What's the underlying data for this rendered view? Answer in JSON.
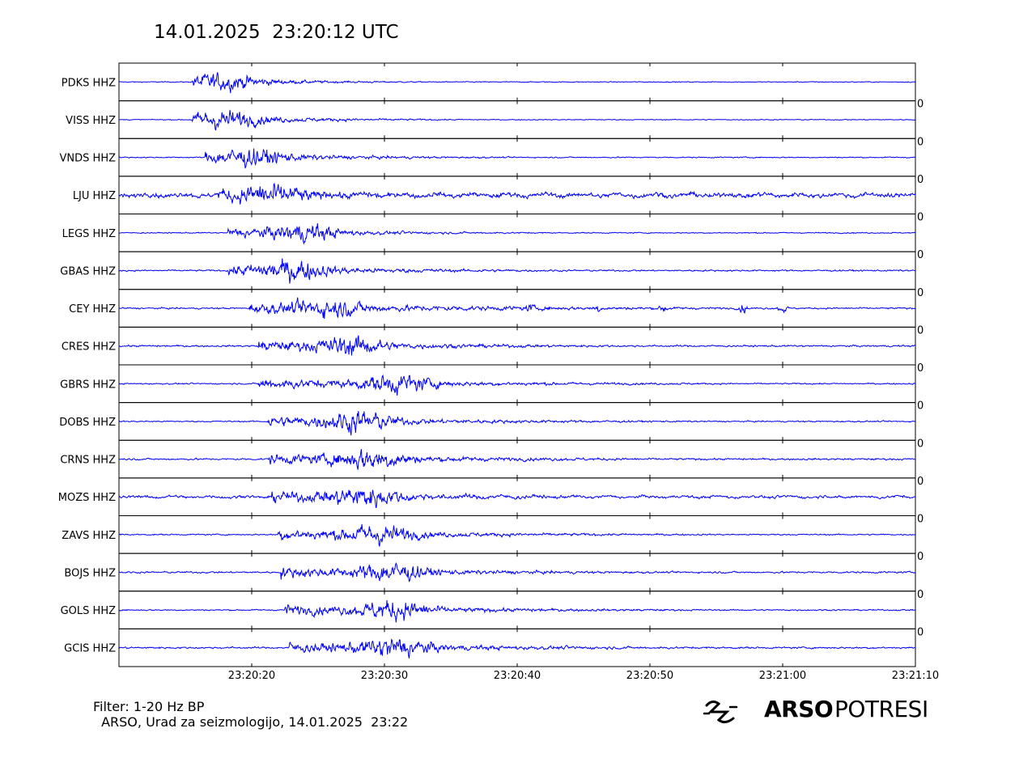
{
  "header": {
    "title": "14.01.2025  23:20:12 UTC"
  },
  "footer": {
    "filter": "Filter: 1-20 Hz BP",
    "credit": " ARSO, Urad za seizmologijo, 14.01.2025  23:22"
  },
  "logo": {
    "bold": "ARSO",
    "light": "POTRESI",
    "icon": "seismic-wave-logo-icon"
  },
  "colors": {
    "trace": "#0000ff",
    "axes": "#000000"
  },
  "chart_data": {
    "type": "line",
    "title": "14.01.2025  23:20:12 UTC",
    "x_tick_labels": [
      "23:20:20",
      "23:20:30",
      "23:20:40",
      "23:20:50",
      "23:21:00",
      "23:21:10"
    ],
    "x_range_seconds_after_origin": [
      0,
      60
    ],
    "x_ticks_seconds_after_origin": [
      10,
      20,
      30,
      40,
      50,
      60
    ],
    "right_axis_label": "0",
    "stations": [
      {
        "name": "PDKS HHZ",
        "p_onset": 5.5,
        "peak": 8.0,
        "noise": 0.04,
        "amp": 0.5,
        "decay": 4,
        "bursts": []
      },
      {
        "name": "VISS HHZ",
        "p_onset": 5.5,
        "peak": 8.0,
        "noise": 0.04,
        "amp": 0.55,
        "decay": 5,
        "bursts": []
      },
      {
        "name": "VNDS HHZ",
        "p_onset": 6.5,
        "peak": 10.0,
        "noise": 0.05,
        "amp": 0.55,
        "decay": 6,
        "bursts": []
      },
      {
        "name": "LJU HHZ",
        "p_onset": 7.5,
        "peak": 11.5,
        "noise": 0.2,
        "amp": 0.7,
        "decay": 10,
        "bursts": []
      },
      {
        "name": "LEGS HHZ",
        "p_onset": 8.2,
        "peak": 14.0,
        "noise": 0.05,
        "amp": 0.6,
        "decay": 6,
        "bursts": []
      },
      {
        "name": "GBAS HHZ",
        "p_onset": 8.2,
        "peak": 13.0,
        "noise": 0.07,
        "amp": 0.7,
        "decay": 8,
        "bursts": []
      },
      {
        "name": "CEY HHZ",
        "p_onset": 9.8,
        "peak": 15.8,
        "noise": 0.07,
        "amp": 0.55,
        "decay": 12,
        "bursts": [
          31.0,
          36.0,
          41.0,
          47.0,
          50.0
        ]
      },
      {
        "name": "CRES HHZ",
        "p_onset": 10.5,
        "peak": 17.5,
        "noise": 0.08,
        "amp": 0.65,
        "decay": 9,
        "bursts": []
      },
      {
        "name": "GBRS HHZ",
        "p_onset": 10.5,
        "peak": 21.0,
        "noise": 0.06,
        "amp": 0.7,
        "decay": 10,
        "bursts": []
      },
      {
        "name": "DOBS HHZ",
        "p_onset": 11.2,
        "peak": 18.0,
        "noise": 0.06,
        "amp": 0.75,
        "decay": 9,
        "bursts": []
      },
      {
        "name": "CRNS HHZ",
        "p_onset": 11.3,
        "peak": 19.0,
        "noise": 0.08,
        "amp": 0.75,
        "decay": 10,
        "bursts": []
      },
      {
        "name": "MOZS HHZ",
        "p_onset": 11.5,
        "peak": 18.5,
        "noise": 0.12,
        "amp": 0.7,
        "decay": 10,
        "bursts": []
      },
      {
        "name": "ZAVS HHZ",
        "p_onset": 12.0,
        "peak": 19.5,
        "noise": 0.06,
        "amp": 0.7,
        "decay": 9,
        "bursts": []
      },
      {
        "name": "BOJS HHZ",
        "p_onset": 12.2,
        "peak": 20.5,
        "noise": 0.08,
        "amp": 0.7,
        "decay": 9,
        "bursts": []
      },
      {
        "name": "GOLS HHZ",
        "p_onset": 12.5,
        "peak": 20.8,
        "noise": 0.06,
        "amp": 0.7,
        "decay": 9,
        "bursts": []
      },
      {
        "name": "GCIS HHZ",
        "p_onset": 12.8,
        "peak": 20.8,
        "noise": 0.08,
        "amp": 0.75,
        "decay": 10,
        "bursts": []
      }
    ]
  }
}
